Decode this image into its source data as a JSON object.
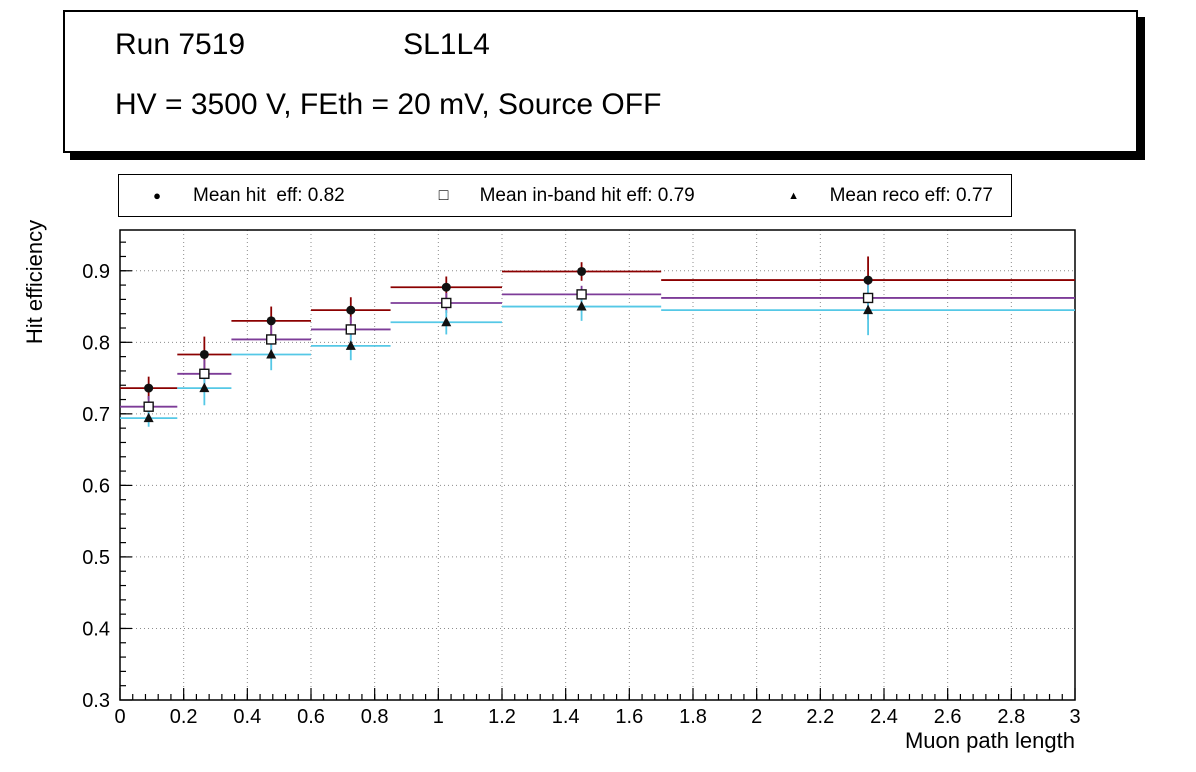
{
  "page": {
    "background": "#ffffff"
  },
  "header": {
    "run_label": "Run 7519",
    "chamber_label": "SL1L4",
    "conditions": "HV = 3500 V, FEth = 20 mV, Source OFF"
  },
  "legend": {
    "entries": [
      {
        "marker": "filled-circle-marker",
        "marker_glyph": "●",
        "label": "Mean hit  eff: 0.82",
        "mean": 0.82
      },
      {
        "marker": "open-square-marker",
        "marker_glyph": "□",
        "label": "Mean in-band hit eff: 0.79",
        "mean": 0.79
      },
      {
        "marker": "filled-triangle-marker",
        "marker_glyph": "▲",
        "label": "Mean reco eff: 0.77",
        "mean": 0.77
      }
    ]
  },
  "chart_data": {
    "type": "scatter",
    "title": "",
    "xlabel": "Muon path length",
    "ylabel": "Hit efficiency",
    "xlim": [
      0,
      3
    ],
    "ylim": [
      0.3,
      0.957
    ],
    "x_major_step": 0.2,
    "y_major_step": 0.1,
    "grid": true,
    "grid_style": "dotted",
    "bins": [
      [
        0,
        0.18
      ],
      [
        0.18,
        0.35
      ],
      [
        0.35,
        0.6
      ],
      [
        0.6,
        0.85
      ],
      [
        0.85,
        1.2
      ],
      [
        1.2,
        1.7
      ],
      [
        1.7,
        3.0
      ]
    ],
    "marker_color": "#111111",
    "series": [
      {
        "name": "Mean hit eff",
        "marker": "filled-circle",
        "color": "#8b0000",
        "y": [
          0.736,
          0.783,
          0.83,
          0.845,
          0.877,
          0.899,
          0.887
        ],
        "yerr": [
          0.016,
          0.025,
          0.02,
          0.018,
          0.015,
          0.013,
          0.033
        ]
      },
      {
        "name": "Mean in-band hit eff",
        "marker": "open-square",
        "color": "#7d3c98",
        "y": [
          0.71,
          0.756,
          0.804,
          0.818,
          0.855,
          0.867,
          0.862
        ],
        "yerr": [
          0.015,
          0.02,
          0.02,
          0.018,
          0.014,
          0.012,
          0.03
        ]
      },
      {
        "name": "Mean reco eff",
        "marker": "filled-triangle",
        "color": "#55c8e6",
        "y": [
          0.694,
          0.736,
          0.783,
          0.795,
          0.828,
          0.85,
          0.845
        ],
        "yerr": [
          0.012,
          0.024,
          0.022,
          0.02,
          0.017,
          0.02,
          0.035
        ]
      }
    ]
  }
}
